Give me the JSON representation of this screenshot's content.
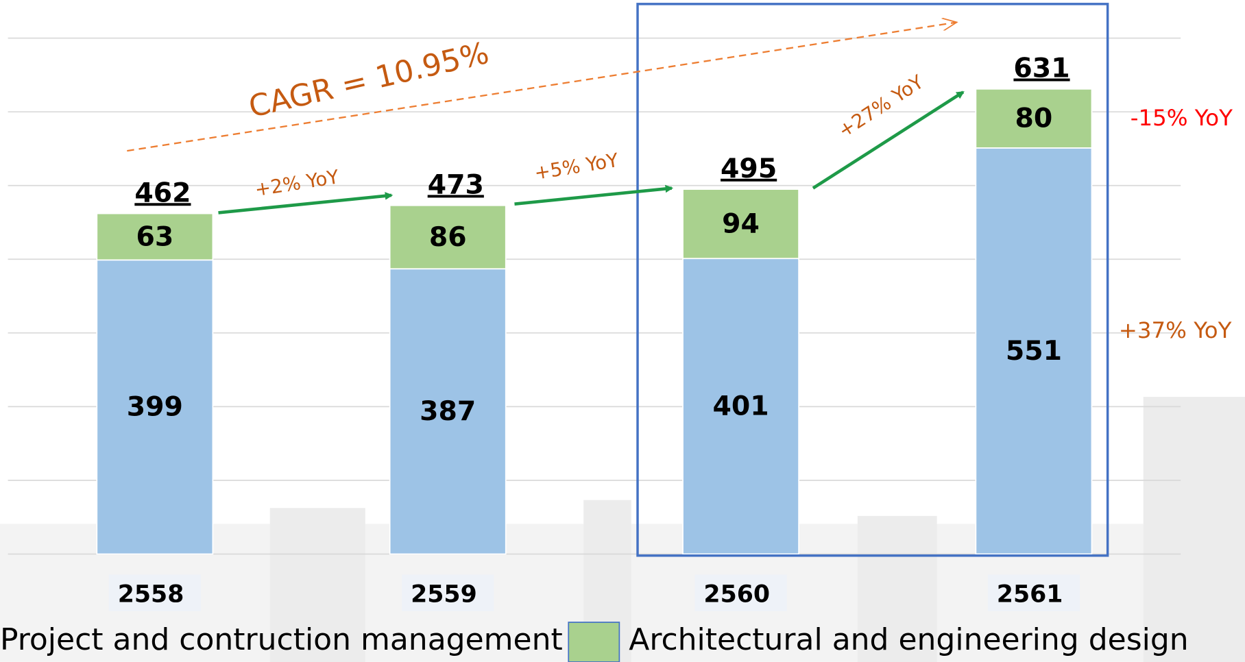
{
  "chart_data": {
    "type": "stacked_bar",
    "categories": [
      "2558",
      "2559",
      "2560",
      "2561"
    ],
    "series": [
      {
        "name": "Project and contruction management",
        "color": "#9dc3e6",
        "values": [
          399,
          387,
          401,
          551
        ]
      },
      {
        "name": "Architectural and engineering design",
        "color": "#a9d18e",
        "values": [
          63,
          86,
          94,
          80
        ]
      }
    ],
    "totals": [
      462,
      473,
      495,
      631
    ],
    "ylim": [
      0,
      700
    ],
    "yticks": [
      0,
      100,
      200,
      300,
      400,
      500,
      600,
      700
    ],
    "grid": true,
    "annotations": [
      "CAGR = 10.95%",
      "+2% YoY",
      "+5% YoY",
      "+27% YoY",
      "-15% YoY",
      "+37% YoY"
    ]
  }
}
